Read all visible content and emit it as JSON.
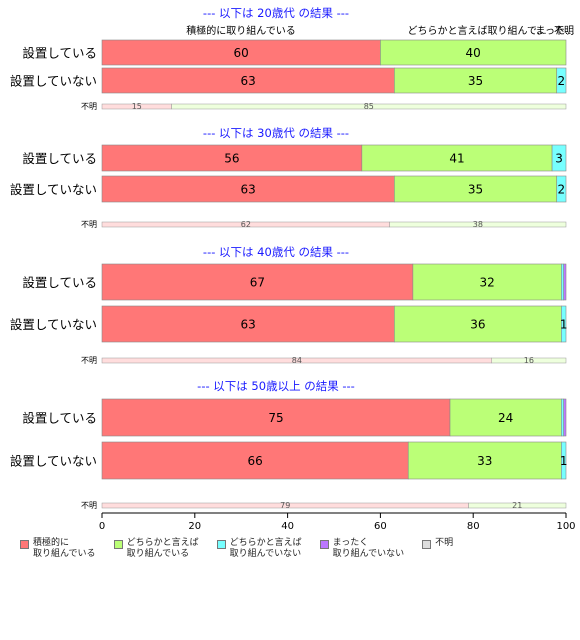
{
  "chart_data": {
    "type": "bar",
    "orientation": "horizontal",
    "stacked": true,
    "xlim": [
      0,
      100
    ],
    "xticks": [
      0,
      20,
      40,
      60,
      80,
      100
    ],
    "categories_legend": [
      {
        "name": "積極的に\n取り組んでいる",
        "color": "#ff7777"
      },
      {
        "name": "どちらかと言えば\n取り組んでいる",
        "color": "#bbff77"
      },
      {
        "name": "どちらかと言えば\n取り組んでいない",
        "color": "#77ffff"
      },
      {
        "name": "まったく\n取り組んでいない",
        "color": "#bb77ff"
      },
      {
        "name": "不明",
        "color": "#dddddd"
      }
    ],
    "header_labels": [
      "積極的に取り組んでいる",
      "どちらかと言えば取り組んで...",
      "まった...",
      "不明"
    ],
    "panels": [
      {
        "title": "--- 以下は 20歳代 の結果 ---",
        "rows": [
          {
            "label": "設置している",
            "values": [
              60,
              40,
              0,
              0,
              0
            ],
            "value_labels": [
              "60",
              "40",
              "",
              "",
              ""
            ]
          },
          {
            "label": "設置していない",
            "values": [
              63,
              35,
              2,
              0,
              0
            ],
            "value_labels": [
              "63",
              "35",
              "2",
              "",
              ""
            ]
          }
        ],
        "unknown": {
          "label": "不明",
          "values": [
            15,
            85
          ],
          "value_labels": [
            "15",
            "85"
          ]
        }
      },
      {
        "title": "--- 以下は 30歳代 の結果 ---",
        "rows": [
          {
            "label": "設置している",
            "values": [
              56,
              41,
              3,
              0,
              0
            ],
            "value_labels": [
              "56",
              "41",
              "3",
              "",
              ""
            ]
          },
          {
            "label": "設置していない",
            "values": [
              63,
              35,
              2,
              0,
              0
            ],
            "value_labels": [
              "63",
              "35",
              "2",
              "",
              ""
            ]
          }
        ],
        "unknown": {
          "label": "不明",
          "values": [
            62,
            38
          ],
          "value_labels": [
            "62",
            "38"
          ]
        }
      },
      {
        "title": "--- 以下は 40歳代 の結果 ---",
        "rows": [
          {
            "label": "設置している",
            "values": [
              67,
              32,
              0.5,
              0.5,
              0
            ],
            "value_labels": [
              "67",
              "32",
              "",
              "",
              ""
            ]
          },
          {
            "label": "設置していない",
            "values": [
              63,
              36,
              1,
              0,
              0
            ],
            "value_labels": [
              "63",
              "36",
              "1",
              "",
              ""
            ]
          }
        ],
        "unknown": {
          "label": "不明",
          "values": [
            84,
            16
          ],
          "value_labels": [
            "84",
            "16"
          ]
        }
      },
      {
        "title": "--- 以下は 50歳以上 の結果 ---",
        "rows": [
          {
            "label": "設置している",
            "values": [
              75,
              24,
              0.5,
              0.5,
              0
            ],
            "value_labels": [
              "75",
              "24",
              "",
              "",
              ""
            ]
          },
          {
            "label": "設置していない",
            "values": [
              66,
              33,
              1,
              0,
              0
            ],
            "value_labels": [
              "66",
              "33",
              "1",
              "",
              ""
            ]
          }
        ],
        "unknown": {
          "label": "不明",
          "values": [
            79,
            21
          ],
          "value_labels": [
            "79",
            "21"
          ]
        }
      }
    ]
  }
}
